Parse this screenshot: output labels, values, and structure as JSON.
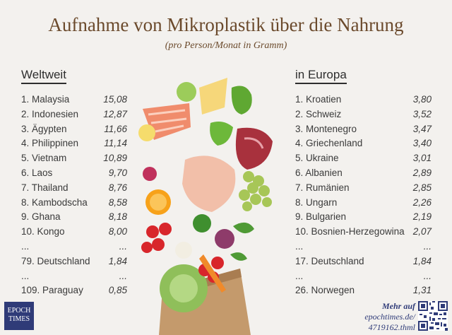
{
  "title": "Aufnahme von Mikroplastik über die Nahrung",
  "subtitle": "(pro Person/Monat in Gramm)",
  "left": {
    "heading": "Weltweit",
    "rows": [
      {
        "name": "1. Malaysia",
        "value": "15,08"
      },
      {
        "name": "2. Indonesien",
        "value": "12,87"
      },
      {
        "name": "3. Ägypten",
        "value": "11,66"
      },
      {
        "name": "4. Philippinen",
        "value": "11,14"
      },
      {
        "name": "5. Vietnam",
        "value": "10,89"
      },
      {
        "name": "6. Laos",
        "value": "9,70"
      },
      {
        "name": "7. Thailand",
        "value": "8,76"
      },
      {
        "name": "8. Kambodscha",
        "value": "8,58"
      },
      {
        "name": "9. Ghana",
        "value": "8,18"
      },
      {
        "name": "10. Kongo",
        "value": "8,00"
      },
      {
        "name": "...",
        "value": "..."
      },
      {
        "name": "79. Deutschland",
        "value": "1,84"
      },
      {
        "name": "...",
        "value": "..."
      },
      {
        "name": "109. Paraguay",
        "value": "0,85"
      }
    ]
  },
  "right": {
    "heading": "in Europa",
    "rows": [
      {
        "name": "1. Kroatien",
        "value": "3,80"
      },
      {
        "name": "2. Schweiz",
        "value": "3,52"
      },
      {
        "name": "3. Montenegro",
        "value": "3,47"
      },
      {
        "name": "4. Griechenland",
        "value": "3,40"
      },
      {
        "name": "5. Ukraine",
        "value": "3,01"
      },
      {
        "name": "6. Albanien",
        "value": "2,89"
      },
      {
        "name": "7. Rumänien",
        "value": "2,85"
      },
      {
        "name": "8. Ungarn",
        "value": "2,26"
      },
      {
        "name": "9. Bulgarien",
        "value": "2,19"
      },
      {
        "name": "10. Bosnien-Herzegowina",
        "value": "2,07"
      },
      {
        "name": "...",
        "value": "..."
      },
      {
        "name": "17. Deutschland",
        "value": "1,84"
      },
      {
        "name": "...",
        "value": "..."
      },
      {
        "name": "26. Norwegen",
        "value": "1,31"
      }
    ]
  },
  "footer": {
    "logo_line1": "EPOCH",
    "logo_line2": "TIMES",
    "more_head": "Mehr auf",
    "more_url1": "epochtimes.de/",
    "more_url2": "4719162.thml"
  }
}
